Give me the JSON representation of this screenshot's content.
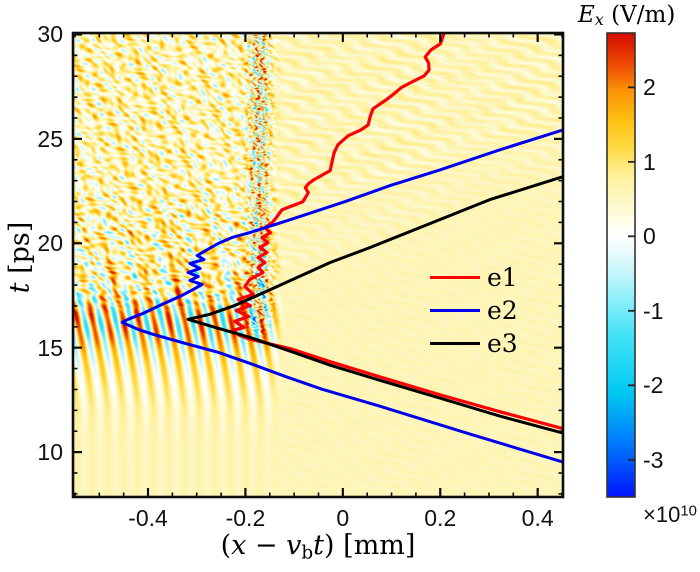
{
  "colors": {
    "axis": "#111111",
    "background": "#ffffff",
    "frame": "#0d0d0d"
  },
  "axis_labels": {
    "x_pre": "(",
    "x_var1": "x",
    "x_minus": " − ",
    "x_var2": "v",
    "x_sub": "b",
    "x_var3": "t",
    "x_post": ") [mm]",
    "y_var": "t",
    "y_unit": " [ps]"
  },
  "x_tick_labels": [
    "-0.4",
    "-0.2",
    "0",
    "0.2",
    "0.4"
  ],
  "y_tick_labels": [
    "30",
    "25",
    "20",
    "15",
    "10"
  ],
  "colorbar": {
    "title_var": "E",
    "title_sub": "x",
    "title_unit": " (V/m)",
    "exp_base": "×10",
    "exp_sup": "10",
    "tick_labels": [
      "2",
      "1",
      "0",
      "-1",
      "-2",
      "-3"
    ],
    "tick_values": [
      2,
      1,
      0,
      -1,
      -2,
      -3
    ],
    "vmin": -3.5,
    "vmax": 2.73
  },
  "legend": [
    {
      "label": "e1",
      "color": "#fb0006"
    },
    {
      "label": "e2",
      "color": "#0000ee"
    },
    {
      "label": "e3",
      "color": "#000000"
    }
  ],
  "chart_data": {
    "type": "heatmap",
    "title": "",
    "xlabel": "(x − v_b t) [mm]",
    "ylabel": "t [ps]",
    "colorbar_label": "E_x (V/m), ×10^10",
    "xlim": [
      -0.554,
      0.452
    ],
    "ylim": [
      7.85,
      30.07
    ],
    "x_ticks": [
      -0.4,
      -0.2,
      0,
      0.2,
      0.4
    ],
    "x_minor_step": 0.05,
    "y_ticks": [
      10,
      15,
      20,
      25,
      30
    ],
    "y_minor_step": 1,
    "grid": false,
    "legend_position": "inside lower-right, no box",
    "field_description": "Longitudinal wakefield Ex(x-vb*t, t): regular vertical wake stripes (wavelength ~0.032 mm) growing in amplitude for t<17 ps at x<-0.12 mm; strong turbulent wave-breaking band near x=-0.17 mm for t>16 ps persisting to t=30 ps; chaotic interference arcs in upper-left quadrant; faint diagonal ripples in upper-right; quiescent pale-yellow wedge to the right of the band and below the e3 front",
    "colormap": [
      {
        "v": -3.5,
        "c": [
          0,
          20,
          255
        ]
      },
      {
        "v": -2.8,
        "c": [
          0,
          120,
          255
        ]
      },
      {
        "v": -2.1,
        "c": [
          0,
          200,
          242
        ]
      },
      {
        "v": -1.3,
        "c": [
          70,
          228,
          248
        ]
      },
      {
        "v": -0.6,
        "c": [
          180,
          244,
          250
        ]
      },
      {
        "v": -0.2,
        "c": [
          235,
          251,
          251
        ]
      },
      {
        "v": 0.0,
        "c": [
          255,
          255,
          255
        ]
      },
      {
        "v": 0.2,
        "c": [
          255,
          253,
          232
        ]
      },
      {
        "v": 0.5,
        "c": [
          253,
          247,
          195
        ]
      },
      {
        "v": 0.8,
        "c": [
          255,
          241,
          157
        ]
      },
      {
        "v": 1.15,
        "c": [
          255,
          220,
          75
        ]
      },
      {
        "v": 1.55,
        "c": [
          255,
          193,
          18
        ]
      },
      {
        "v": 1.95,
        "c": [
          251,
          148,
          6
        ]
      },
      {
        "v": 2.3,
        "c": [
          238,
          75,
          2
        ]
      },
      {
        "v": 2.73,
        "c": [
          213,
          12,
          0
        ]
      }
    ],
    "series": [
      {
        "name": "e1",
        "color": "#fb0006",
        "width": 3.2,
        "points": [
          [
            0.208,
            30.07
          ],
          [
            0.2,
            29.55
          ],
          [
            0.181,
            29.26
          ],
          [
            0.169,
            28.92
          ],
          [
            0.176,
            28.64
          ],
          [
            0.177,
            28.3
          ],
          [
            0.167,
            28.02
          ],
          [
            0.142,
            27.73
          ],
          [
            0.119,
            27.44
          ],
          [
            0.105,
            27.16
          ],
          [
            0.089,
            26.87
          ],
          [
            0.062,
            26.44
          ],
          [
            0.056,
            26.06
          ],
          [
            0.052,
            25.67
          ],
          [
            0.037,
            25.43
          ],
          [
            0.011,
            25.15
          ],
          [
            -0.01,
            24.72
          ],
          [
            -0.018,
            24.34
          ],
          [
            -0.022,
            23.91
          ],
          [
            -0.026,
            23.48
          ],
          [
            -0.059,
            23.05
          ],
          [
            -0.071,
            22.85
          ],
          [
            -0.077,
            22.66
          ],
          [
            -0.071,
            22.42
          ],
          [
            -0.082,
            21.99
          ],
          [
            -0.125,
            21.61
          ],
          [
            -0.135,
            21.28
          ],
          [
            -0.145,
            20.99
          ],
          [
            -0.16,
            20.75
          ],
          [
            -0.149,
            20.51
          ],
          [
            -0.166,
            20.27
          ],
          [
            -0.154,
            20.03
          ],
          [
            -0.17,
            19.8
          ],
          [
            -0.156,
            19.56
          ],
          [
            -0.174,
            19.32
          ],
          [
            -0.16,
            19.08
          ],
          [
            -0.174,
            18.84
          ],
          [
            -0.164,
            18.6
          ],
          [
            -0.191,
            18.27
          ],
          [
            -0.201,
            17.93
          ],
          [
            -0.184,
            17.55
          ],
          [
            -0.215,
            17.31
          ],
          [
            -0.19,
            17.02
          ],
          [
            -0.219,
            16.78
          ],
          [
            -0.193,
            16.5
          ],
          [
            -0.222,
            16.26
          ],
          [
            -0.203,
            15.97
          ],
          [
            -0.226,
            15.83
          ],
          [
            -0.212,
            15.59
          ],
          [
            -0.193,
            15.42
          ],
          [
            -0.108,
            14.95
          ],
          [
            -0.026,
            14.33
          ],
          [
            0.076,
            13.6
          ],
          [
            0.2,
            12.74
          ],
          [
            0.323,
            11.93
          ],
          [
            0.452,
            11.12
          ]
        ]
      },
      {
        "name": "e2",
        "color": "#0000ee",
        "width": 3.0,
        "points": [
          [
            0.452,
            25.43
          ],
          [
            0.323,
            24.48
          ],
          [
            0.2,
            23.52
          ],
          [
            0.097,
            22.76
          ],
          [
            0.004,
            21.99
          ],
          [
            -0.108,
            21.13
          ],
          [
            -0.191,
            20.51
          ],
          [
            -0.228,
            20.27
          ],
          [
            -0.256,
            19.99
          ],
          [
            -0.285,
            19.6
          ],
          [
            -0.299,
            19.41
          ],
          [
            -0.285,
            19.22
          ],
          [
            -0.314,
            19.03
          ],
          [
            -0.293,
            18.79
          ],
          [
            -0.318,
            18.6
          ],
          [
            -0.297,
            18.41
          ],
          [
            -0.314,
            18.22
          ],
          [
            -0.289,
            18.03
          ],
          [
            -0.307,
            17.79
          ],
          [
            -0.334,
            17.46
          ],
          [
            -0.375,
            17.03
          ],
          [
            -0.41,
            16.64
          ],
          [
            -0.441,
            16.36
          ],
          [
            -0.453,
            16.21
          ],
          [
            -0.421,
            15.88
          ],
          [
            -0.39,
            15.64
          ],
          [
            -0.324,
            15.21
          ],
          [
            -0.256,
            14.78
          ],
          [
            -0.186,
            14.21
          ],
          [
            -0.119,
            13.63
          ],
          [
            -0.043,
            13.01
          ],
          [
            0.076,
            12.2
          ],
          [
            0.261,
            10.86
          ],
          [
            0.452,
            9.52
          ]
        ]
      },
      {
        "name": "e3",
        "color": "#000000",
        "width": 3.0,
        "points": [
          [
            0.452,
            23.19
          ],
          [
            0.302,
            22.09
          ],
          [
            0.158,
            20.75
          ],
          [
            0.056,
            19.8
          ],
          [
            -0.026,
            19.08
          ],
          [
            -0.098,
            18.32
          ],
          [
            -0.166,
            17.6
          ],
          [
            -0.221,
            17.03
          ],
          [
            -0.273,
            16.6
          ],
          [
            -0.318,
            16.36
          ],
          [
            -0.262,
            15.97
          ],
          [
            -0.191,
            15.5
          ],
          [
            -0.108,
            14.83
          ],
          [
            -0.026,
            14.16
          ],
          [
            0.076,
            13.44
          ],
          [
            0.2,
            12.58
          ],
          [
            0.323,
            11.72
          ],
          [
            0.452,
            10.91
          ]
        ]
      }
    ]
  }
}
